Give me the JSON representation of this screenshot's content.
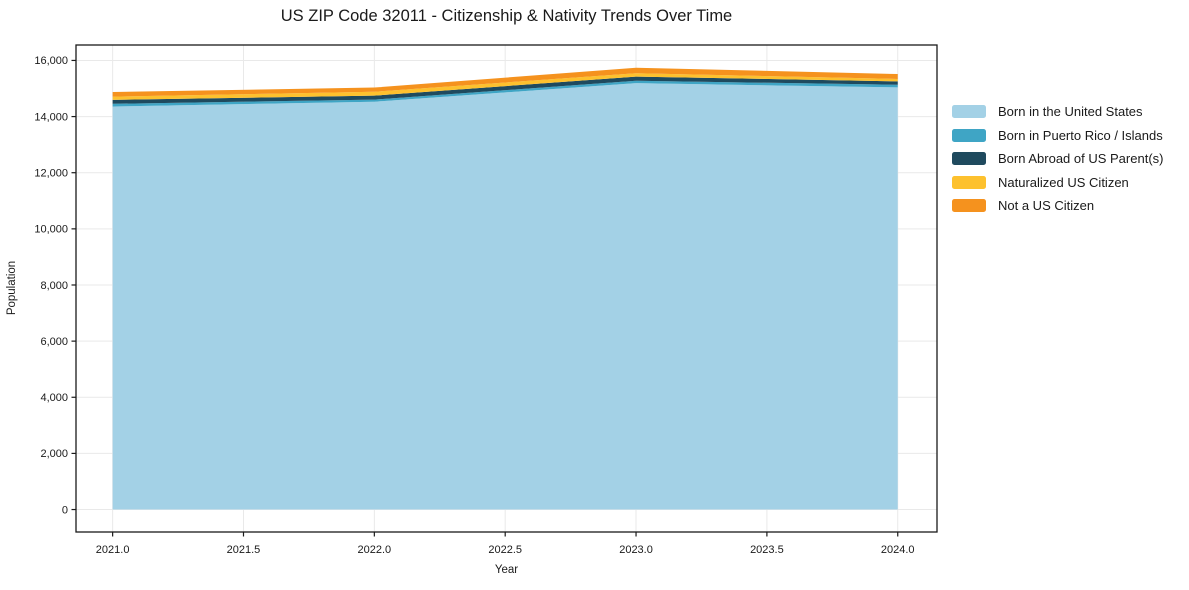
{
  "figure": {
    "background": "#ffffff",
    "grid_color": "#e9e9e9",
    "spine_color": "#1a1a1a",
    "text_color": "#1a1a1a"
  },
  "chart_data": {
    "type": "area",
    "stacked": true,
    "title": "US ZIP Code 32011 - Citizenship & Nativity Trends Over Time",
    "xlabel": "Year",
    "ylabel": "Population",
    "grid": true,
    "legend_position": "right of plot, no frame",
    "x": [
      2021,
      2022,
      2023,
      2024
    ],
    "series": [
      {
        "name": "Born in the United States",
        "color": "#a3d1e6",
        "values": [
          14360,
          14530,
          15190,
          15040
        ]
      },
      {
        "name": "Born in Puerto Rico / Islands",
        "color": "#3fa5c5",
        "values": [
          95,
          75,
          85,
          95
        ]
      },
      {
        "name": "Born Abroad of US Parent(s)",
        "color": "#1f4a5e",
        "values": [
          140,
          140,
          150,
          120
        ]
      },
      {
        "name": "Naturalized US Citizen",
        "color": "#fdc12e",
        "values": [
          115,
          140,
          120,
          85
        ]
      },
      {
        "name": "Not a US Citizen",
        "color": "#f5921e",
        "values": [
          165,
          150,
          195,
          175
        ]
      }
    ],
    "stack_totals": [
      14875,
      15035,
      15740,
      15515
    ],
    "xlim": [
      2020.86,
      2024.15
    ],
    "ylim": [
      -800,
      16550
    ],
    "xticks": {
      "values": [
        2021.0,
        2021.5,
        2022.0,
        2022.5,
        2023.0,
        2023.5,
        2024.0
      ],
      "labels": [
        "2021.0",
        "2021.5",
        "2022.0",
        "2022.5",
        "2023.0",
        "2023.5",
        "2024.0"
      ]
    },
    "yticks": {
      "values": [
        0,
        2000,
        4000,
        6000,
        8000,
        10000,
        12000,
        14000,
        16000
      ],
      "labels": [
        "0",
        "2,000",
        "4,000",
        "6,000",
        "8,000",
        "10,000",
        "12,000",
        "14,000",
        "16,000"
      ]
    }
  }
}
